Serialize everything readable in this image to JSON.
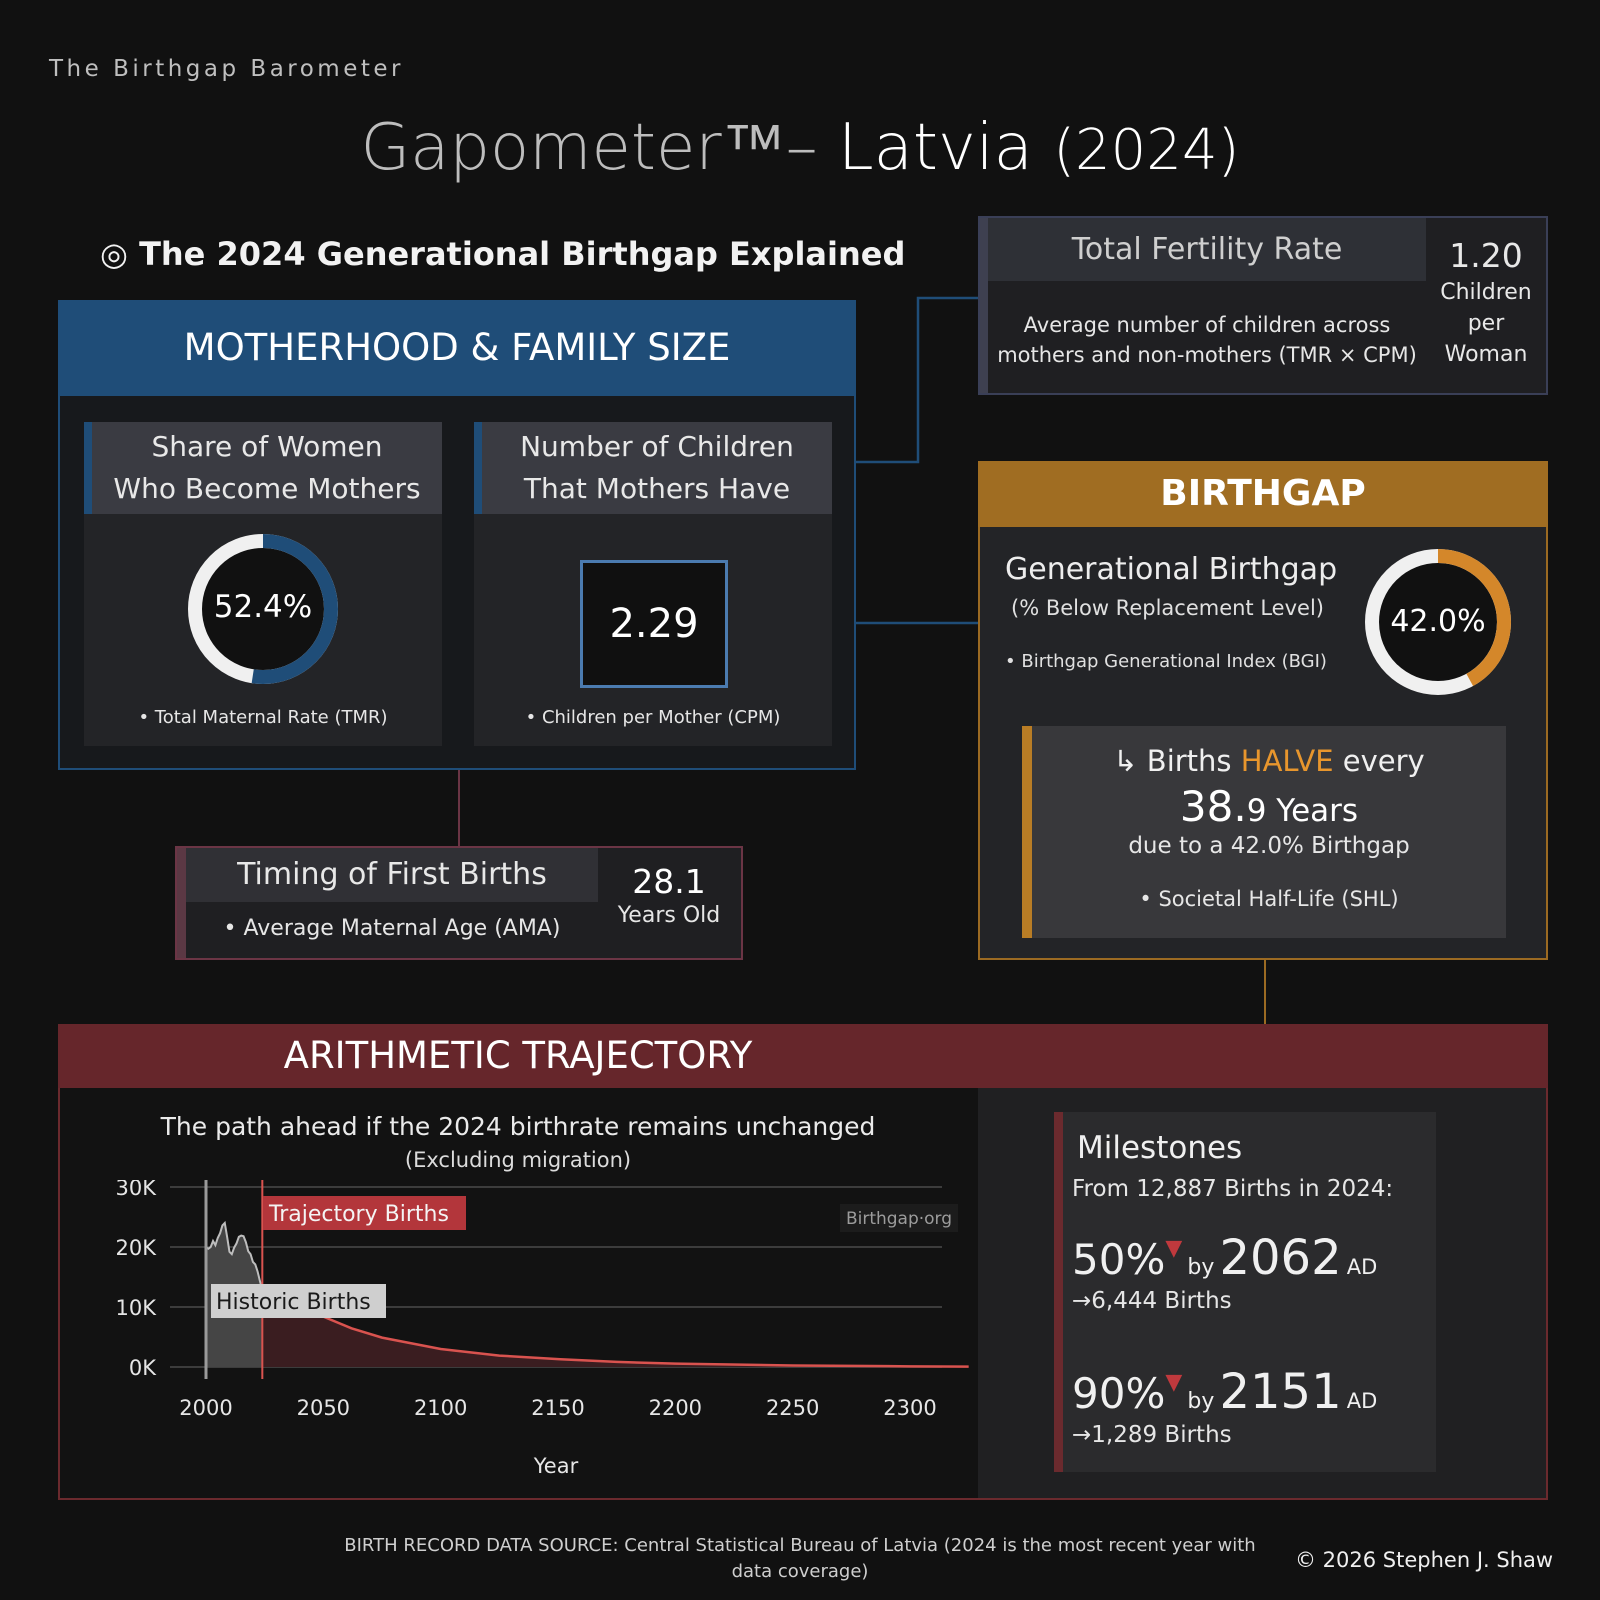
{
  "header": {
    "brand": "The Birthgap Barometer",
    "title_pre": "Gapometer™",
    "title_dash": "– ",
    "title_country": "Latvia",
    "title_year": "(2024)",
    "explained": "◎ The 2024 Generational Birthgap Explained"
  },
  "motherhood": {
    "title": "MOTHERHOOD & FAMILY SIZE",
    "share_head_1": "Share of Women",
    "share_head_2": "Who Become Mothers",
    "share_value": "52.4%",
    "share_fraction": 0.524,
    "share_note": "• Total Maternal Rate (TMR)",
    "children_head_1": "Number of Children",
    "children_head_2": "That Mothers Have",
    "children_value": "2.29",
    "children_note": "• Children per Mother (CPM)"
  },
  "tfr": {
    "title": "Total Fertility Rate",
    "desc_1": "Average number of children across",
    "desc_2": "mothers and non-mothers (TMR × CPM)",
    "value": "1.20",
    "unit_1": "Children",
    "unit_2": "per",
    "unit_3": "Woman"
  },
  "birthgap": {
    "title": "BIRTHGAP",
    "label": "Generational Birthgap",
    "sublabel": "(% Below Replacement Level)",
    "note": "• Birthgap Generational Index (BGI)",
    "value": "42.0%",
    "fraction": 0.42,
    "half_arrow": "↳ Births ",
    "half_word": "HALVE",
    "half_every": " every",
    "half_years_big": "38.",
    "half_years_small": "9 Years",
    "half_due": "due to a 42.0% Birthgap",
    "half_note": "• Societal Half-Life (SHL)"
  },
  "timing": {
    "title": "Timing of First Births",
    "note": "• Average Maternal Age (AMA)",
    "value": "28.1",
    "unit": "Years Old"
  },
  "trajectory": {
    "title": "ARITHMETIC TRAJECTORY",
    "subtitle": "The path ahead if the 2024 birthrate remains unchanged",
    "subtitle2": "(Excluding migration)",
    "watermark": "Birthgap·org",
    "label_trajectory": "Trajectory Births",
    "label_historic": "Historic Births"
  },
  "milestones": {
    "title": "Milestones",
    "from": "From 12,887 Births in 2024:",
    "m1_pct": "50%",
    "m1_by": "by",
    "m1_year": "2062",
    "m1_ad": "AD",
    "m1_births": "→6,444 Births",
    "m2_pct": "90%",
    "m2_by": "by",
    "m2_year": "2151",
    "m2_ad": "AD",
    "m2_births": "→1,289 Births"
  },
  "footer": {
    "source": "BIRTH RECORD DATA SOURCE: Central Statistical Bureau of Latvia (2024 is the most recent year with data coverage)",
    "copyright": "© 2026 Stephen J. Shaw"
  },
  "colors": {
    "blue": "#1f4d78",
    "orange": "#d4872a",
    "red": "#66262b",
    "trajectory_line": "#d9534f"
  },
  "chart_data": {
    "type": "area",
    "xlabel": "Year",
    "ylabel": "",
    "xlim": [
      2000,
      2325
    ],
    "ylim": [
      0,
      30000
    ],
    "x_ticks": [
      2000,
      2050,
      2100,
      2150,
      2200,
      2250,
      2300
    ],
    "x_tick_labels": [
      "2000",
      "2050",
      "2100",
      "2150",
      "2200",
      "2250",
      "2300"
    ],
    "y_ticks": [
      0,
      10000,
      20000,
      30000
    ],
    "y_tick_labels": [
      "0K",
      "10K",
      "20K",
      "30K"
    ],
    "series": [
      {
        "name": "Historic Births",
        "x": [
          2000,
          2001,
          2002,
          2003,
          2004,
          2005,
          2006,
          2007,
          2008,
          2009,
          2010,
          2011,
          2012,
          2013,
          2014,
          2015,
          2016,
          2017,
          2018,
          2019,
          2020,
          2021,
          2022,
          2023,
          2024
        ],
        "values": [
          20000,
          19700,
          20000,
          21000,
          20300,
          21500,
          22300,
          23600,
          24000,
          21700,
          19200,
          18800,
          19900,
          20600,
          21700,
          21900,
          21800,
          20800,
          19300,
          18800,
          17500,
          17100,
          15900,
          14300,
          12887
        ]
      },
      {
        "name": "Trajectory Births",
        "x": [
          2024,
          2030,
          2040,
          2050,
          2062,
          2075,
          2100,
          2125,
          2151,
          2175,
          2200,
          2250,
          2300,
          2325
        ],
        "values": [
          12887,
          11600,
          9900,
          8400,
          6444,
          4900,
          3000,
          1900,
          1289,
          850,
          560,
          260,
          110,
          60
        ]
      }
    ]
  }
}
